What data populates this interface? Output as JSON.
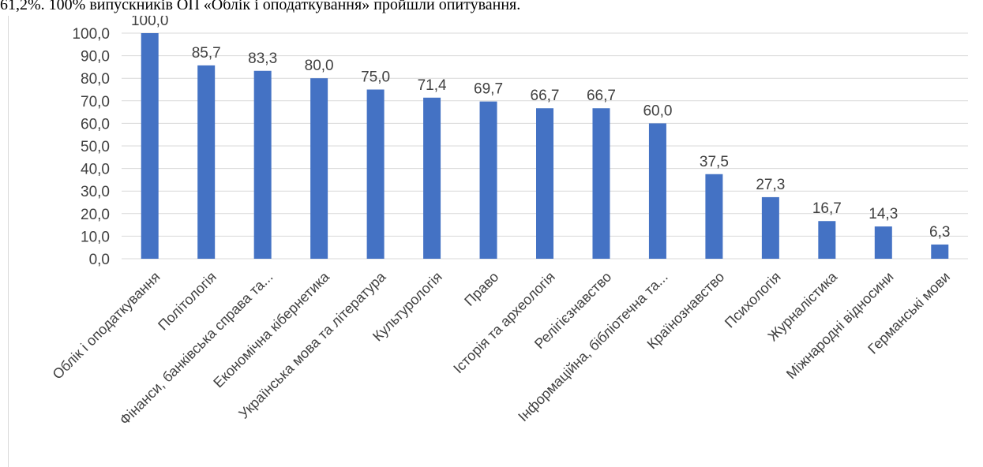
{
  "document": {
    "caption_line": "61,2%. 100% випускників ОП «Облік і оподаткування» пройшли опитування."
  },
  "colors": {
    "bar": "#4472c4",
    "grid": "#d9d9d9",
    "text": "#404040"
  },
  "chart_data": {
    "type": "bar",
    "title": "",
    "xlabel": "",
    "ylabel": "",
    "ylim": [
      0,
      100
    ],
    "ytick_step": 10,
    "ytick_labels": [
      "0,0",
      "10,0",
      "20,0",
      "30,0",
      "40,0",
      "50,0",
      "60,0",
      "70,0",
      "80,0",
      "90,0",
      "100,0"
    ],
    "grid": true,
    "legend": "none",
    "categories": [
      "Облік і оподаткування",
      "Політологія",
      "Фінанси, банківська справа та...",
      "Економічна кібернетика",
      "Українська мова та література",
      "Культурологія",
      "Право",
      "Історія та археологія",
      "Релігієзнавство",
      "Інформаційна, бібліотечна та...",
      "Країнознавство",
      "Психологія",
      "Журналістика",
      "Міжнародні відносини",
      "Германські мови"
    ],
    "values": [
      100.0,
      85.7,
      83.3,
      80.0,
      75.0,
      71.4,
      69.7,
      66.7,
      66.7,
      60.0,
      37.5,
      27.3,
      16.7,
      14.3,
      6.3
    ],
    "value_labels": [
      "100,0",
      "85,7",
      "83,3",
      "80,0",
      "75,0",
      "71,4",
      "69,7",
      "66,7",
      "66,7",
      "60,0",
      "37,5",
      "27,3",
      "16,7",
      "14,3",
      "6,3"
    ]
  }
}
